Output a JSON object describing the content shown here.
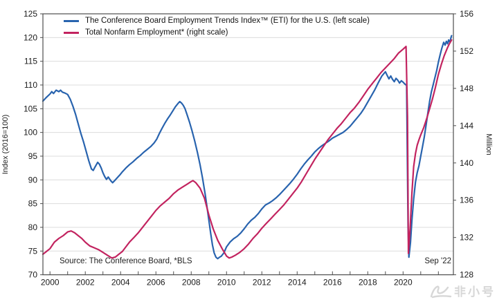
{
  "watermark": {
    "text": "非小号"
  },
  "chart_data": {
    "type": "line",
    "title": "",
    "source": "Source: The Conference Board, *BLS",
    "annotations": {
      "last_label": "Sep '22"
    },
    "legend_position": "top-left-inside",
    "grid": "horizontal-only",
    "left_axis": {
      "label": "Index (2016=100)",
      "min": 70,
      "max": 125,
      "step": 5,
      "ticks": [
        70,
        75,
        80,
        85,
        90,
        95,
        100,
        105,
        110,
        115,
        120,
        125
      ]
    },
    "right_axis": {
      "label": "Million",
      "min": 128,
      "max": 156,
      "step": 4,
      "ticks": [
        128,
        132,
        136,
        140,
        144,
        148,
        152,
        156
      ]
    },
    "x_axis": {
      "min": 1999.6,
      "max": 2022.85,
      "label_years": [
        2000,
        2002,
        2004,
        2006,
        2008,
        2010,
        2012,
        2014,
        2016,
        2018,
        2020
      ],
      "minor_tick_start": 2000,
      "minor_tick_end": 2022
    },
    "series": [
      {
        "name": "The Conference Board Employment Trends Index™ (ETI) for the U.S. (left scale)",
        "color": "#2863ae",
        "axis": "left",
        "points": [
          [
            1999.6,
            106.6
          ],
          [
            1999.8,
            107.4
          ],
          [
            2000,
            108.1
          ],
          [
            2000.1,
            108.6
          ],
          [
            2000.2,
            108.2
          ],
          [
            2000.35,
            108.9
          ],
          [
            2000.5,
            108.6
          ],
          [
            2000.6,
            108.9
          ],
          [
            2000.7,
            108.5
          ],
          [
            2000.85,
            108.3
          ],
          [
            2001,
            108
          ],
          [
            2001.15,
            107
          ],
          [
            2001.3,
            105.5
          ],
          [
            2001.45,
            103.8
          ],
          [
            2001.6,
            101.8
          ],
          [
            2001.75,
            99.8
          ],
          [
            2001.9,
            98
          ],
          [
            2002.05,
            96
          ],
          [
            2002.2,
            94
          ],
          [
            2002.35,
            92.3
          ],
          [
            2002.45,
            92
          ],
          [
            2002.55,
            92.7
          ],
          [
            2002.7,
            93.7
          ],
          [
            2002.8,
            93.3
          ],
          [
            2002.9,
            92.5
          ],
          [
            2003,
            91.5
          ],
          [
            2003.1,
            90.7
          ],
          [
            2003.2,
            90.1
          ],
          [
            2003.3,
            90.6
          ],
          [
            2003.45,
            89.8
          ],
          [
            2003.55,
            89.4
          ],
          [
            2003.65,
            89.8
          ],
          [
            2003.8,
            90.4
          ],
          [
            2003.95,
            91
          ],
          [
            2004.1,
            91.7
          ],
          [
            2004.3,
            92.5
          ],
          [
            2004.5,
            93.2
          ],
          [
            2004.7,
            93.8
          ],
          [
            2004.9,
            94.5
          ],
          [
            2005.1,
            95.1
          ],
          [
            2005.3,
            95.8
          ],
          [
            2005.5,
            96.4
          ],
          [
            2005.7,
            97
          ],
          [
            2005.9,
            97.8
          ],
          [
            2006.05,
            98.6
          ],
          [
            2006.2,
            99.8
          ],
          [
            2006.35,
            100.9
          ],
          [
            2006.5,
            101.9
          ],
          [
            2006.65,
            102.8
          ],
          [
            2006.8,
            103.6
          ],
          [
            2006.95,
            104.5
          ],
          [
            2007.1,
            105.4
          ],
          [
            2007.25,
            106.1
          ],
          [
            2007.35,
            106.5
          ],
          [
            2007.45,
            106.2
          ],
          [
            2007.55,
            105.7
          ],
          [
            2007.65,
            105
          ],
          [
            2007.75,
            103.9
          ],
          [
            2007.9,
            102.2
          ],
          [
            2008.05,
            100.3
          ],
          [
            2008.2,
            98.2
          ],
          [
            2008.35,
            95.8
          ],
          [
            2008.5,
            93.2
          ],
          [
            2008.65,
            90.2
          ],
          [
            2008.8,
            86.8
          ],
          [
            2008.95,
            82.8
          ],
          [
            2009.1,
            78.8
          ],
          [
            2009.2,
            76.3
          ],
          [
            2009.3,
            74.6
          ],
          [
            2009.4,
            73.7
          ],
          [
            2009.5,
            73.4
          ],
          [
            2009.6,
            73.7
          ],
          [
            2009.7,
            73.9
          ],
          [
            2009.85,
            74.6
          ],
          [
            2010,
            75.9
          ],
          [
            2010.2,
            76.9
          ],
          [
            2010.4,
            77.6
          ],
          [
            2010.6,
            78.1
          ],
          [
            2010.8,
            78.8
          ],
          [
            2011,
            79.7
          ],
          [
            2011.2,
            80.7
          ],
          [
            2011.4,
            81.5
          ],
          [
            2011.6,
            82.1
          ],
          [
            2011.8,
            82.9
          ],
          [
            2012,
            83.9
          ],
          [
            2012.2,
            84.7
          ],
          [
            2012.4,
            85.1
          ],
          [
            2012.6,
            85.6
          ],
          [
            2012.8,
            86.2
          ],
          [
            2013,
            86.9
          ],
          [
            2013.2,
            87.7
          ],
          [
            2013.4,
            88.5
          ],
          [
            2013.6,
            89.3
          ],
          [
            2013.8,
            90.2
          ],
          [
            2014,
            91.2
          ],
          [
            2014.2,
            92.3
          ],
          [
            2014.4,
            93.3
          ],
          [
            2014.6,
            94.2
          ],
          [
            2014.8,
            95
          ],
          [
            2015,
            95.9
          ],
          [
            2015.2,
            96.6
          ],
          [
            2015.4,
            97.2
          ],
          [
            2015.6,
            97.7
          ],
          [
            2015.8,
            98.2
          ],
          [
            2016,
            98.8
          ],
          [
            2016.2,
            99.2
          ],
          [
            2016.4,
            99.6
          ],
          [
            2016.6,
            100
          ],
          [
            2016.8,
            100.6
          ],
          [
            2017,
            101.3
          ],
          [
            2017.2,
            102.2
          ],
          [
            2017.4,
            103.1
          ],
          [
            2017.6,
            104
          ],
          [
            2017.8,
            105.1
          ],
          [
            2018,
            106.4
          ],
          [
            2018.2,
            107.7
          ],
          [
            2018.4,
            109
          ],
          [
            2018.6,
            110.5
          ],
          [
            2018.8,
            111.9
          ],
          [
            2019,
            112.8
          ],
          [
            2019.1,
            112
          ],
          [
            2019.2,
            111.3
          ],
          [
            2019.3,
            111.9
          ],
          [
            2019.4,
            111.2
          ],
          [
            2019.5,
            110.7
          ],
          [
            2019.6,
            111.4
          ],
          [
            2019.7,
            111
          ],
          [
            2019.8,
            110.4
          ],
          [
            2019.9,
            110.9
          ],
          [
            2020,
            110.6
          ],
          [
            2020.1,
            110.2
          ],
          [
            2020.2,
            109.9
          ],
          [
            2020.28,
            80
          ],
          [
            2020.33,
            73.7
          ],
          [
            2020.42,
            76.8
          ],
          [
            2020.5,
            81.5
          ],
          [
            2020.6,
            86
          ],
          [
            2020.7,
            89.5
          ],
          [
            2020.8,
            91.5
          ],
          [
            2020.9,
            93
          ],
          [
            2021,
            95
          ],
          [
            2021.1,
            97
          ],
          [
            2021.2,
            99
          ],
          [
            2021.3,
            101.5
          ],
          [
            2021.4,
            104
          ],
          [
            2021.5,
            106.5
          ],
          [
            2021.6,
            108.5
          ],
          [
            2021.7,
            110
          ],
          [
            2021.8,
            111.5
          ],
          [
            2021.9,
            113
          ],
          [
            2022,
            114.8
          ],
          [
            2022.1,
            116.4
          ],
          [
            2022.2,
            117.8
          ],
          [
            2022.3,
            119
          ],
          [
            2022.38,
            118.4
          ],
          [
            2022.45,
            119.2
          ],
          [
            2022.52,
            118.7
          ],
          [
            2022.58,
            119.5
          ],
          [
            2022.65,
            119
          ],
          [
            2022.7,
            119.8
          ],
          [
            2022.75,
            120.4
          ]
        ]
      },
      {
        "name": "Total Nonfarm Employment* (right scale)",
        "color": "#c2235f",
        "axis": "right",
        "points": [
          [
            1999.6,
            130.2
          ],
          [
            1999.8,
            130.5
          ],
          [
            2000,
            130.8
          ],
          [
            2000.25,
            131.5
          ],
          [
            2000.5,
            131.9
          ],
          [
            2000.75,
            132.2
          ],
          [
            2001,
            132.6
          ],
          [
            2001.2,
            132.7
          ],
          [
            2001.4,
            132.5
          ],
          [
            2001.6,
            132.2
          ],
          [
            2001.8,
            131.9
          ],
          [
            2002,
            131.5
          ],
          [
            2002.25,
            131.1
          ],
          [
            2002.5,
            130.9
          ],
          [
            2002.75,
            130.7
          ],
          [
            2003,
            130.4
          ],
          [
            2003.25,
            130.1
          ],
          [
            2003.5,
            129.8
          ],
          [
            2003.7,
            129.9
          ],
          [
            2003.9,
            130.2
          ],
          [
            2004.1,
            130.5
          ],
          [
            2004.3,
            131
          ],
          [
            2004.5,
            131.5
          ],
          [
            2004.75,
            132
          ],
          [
            2005,
            132.5
          ],
          [
            2005.25,
            133.1
          ],
          [
            2005.5,
            133.7
          ],
          [
            2005.75,
            134.3
          ],
          [
            2006,
            134.9
          ],
          [
            2006.25,
            135.4
          ],
          [
            2006.5,
            135.8
          ],
          [
            2006.75,
            136.2
          ],
          [
            2007,
            136.7
          ],
          [
            2007.25,
            137.1
          ],
          [
            2007.5,
            137.4
          ],
          [
            2007.75,
            137.7
          ],
          [
            2008,
            138
          ],
          [
            2008.1,
            138.1
          ],
          [
            2008.25,
            137.9
          ],
          [
            2008.5,
            137.3
          ],
          [
            2008.75,
            136.2
          ],
          [
            2009,
            134.4
          ],
          [
            2009.25,
            132.9
          ],
          [
            2009.5,
            131.7
          ],
          [
            2009.75,
            130.8
          ],
          [
            2010,
            130
          ],
          [
            2010.15,
            129.8
          ],
          [
            2010.3,
            129.9
          ],
          [
            2010.5,
            130.1
          ],
          [
            2010.75,
            130.4
          ],
          [
            2011,
            130.8
          ],
          [
            2011.25,
            131.3
          ],
          [
            2011.5,
            131.9
          ],
          [
            2011.75,
            132.4
          ],
          [
            2012,
            133
          ],
          [
            2012.25,
            133.5
          ],
          [
            2012.5,
            134
          ],
          [
            2012.75,
            134.5
          ],
          [
            2013,
            135
          ],
          [
            2013.25,
            135.5
          ],
          [
            2013.5,
            136.1
          ],
          [
            2013.75,
            136.7
          ],
          [
            2014,
            137.3
          ],
          [
            2014.25,
            138
          ],
          [
            2014.5,
            138.8
          ],
          [
            2014.75,
            139.6
          ],
          [
            2015,
            140.4
          ],
          [
            2015.25,
            141.1
          ],
          [
            2015.5,
            141.8
          ],
          [
            2015.75,
            142.5
          ],
          [
            2016,
            143.1
          ],
          [
            2016.25,
            143.7
          ],
          [
            2016.5,
            144.2
          ],
          [
            2016.75,
            144.8
          ],
          [
            2017,
            145.4
          ],
          [
            2017.25,
            145.9
          ],
          [
            2017.5,
            146.5
          ],
          [
            2017.75,
            147.2
          ],
          [
            2018,
            147.9
          ],
          [
            2018.25,
            148.5
          ],
          [
            2018.5,
            149.1
          ],
          [
            2018.75,
            149.7
          ],
          [
            2019,
            150.2
          ],
          [
            2019.25,
            150.7
          ],
          [
            2019.5,
            151.2
          ],
          [
            2019.75,
            151.8
          ],
          [
            2020,
            152.2
          ],
          [
            2020.17,
            152.5
          ],
          [
            2020.25,
            145
          ],
          [
            2020.3,
            130.3
          ],
          [
            2020.4,
            133
          ],
          [
            2020.5,
            136.8
          ],
          [
            2020.6,
            139.6
          ],
          [
            2020.7,
            141
          ],
          [
            2020.8,
            141.9
          ],
          [
            2020.9,
            142.5
          ],
          [
            2021,
            143
          ],
          [
            2021.17,
            143.8
          ],
          [
            2021.33,
            144.7
          ],
          [
            2021.5,
            145.8
          ],
          [
            2021.67,
            146.9
          ],
          [
            2021.83,
            148.1
          ],
          [
            2022,
            149.5
          ],
          [
            2022.17,
            150.6
          ],
          [
            2022.33,
            151.5
          ],
          [
            2022.5,
            152.3
          ],
          [
            2022.6,
            152.7
          ],
          [
            2022.75,
            153.2
          ]
        ]
      }
    ]
  }
}
